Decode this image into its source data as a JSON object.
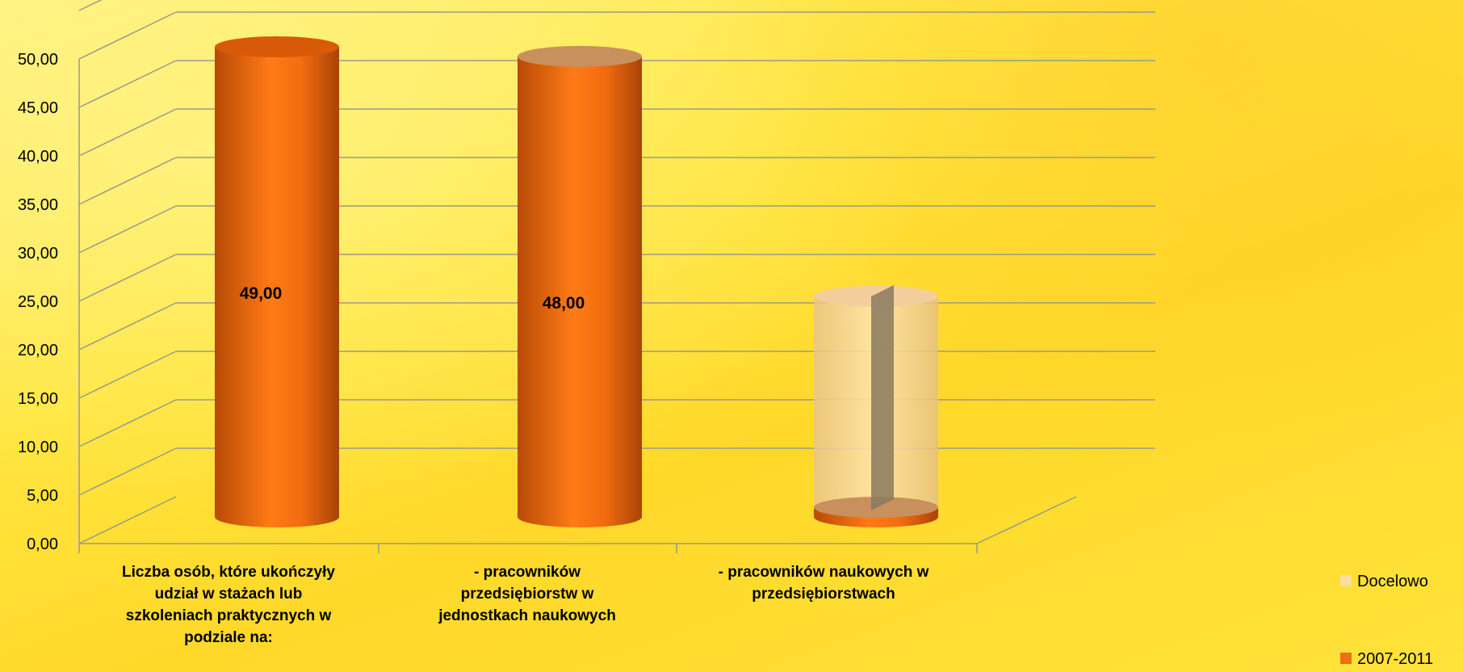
{
  "chart_data": {
    "type": "bar",
    "categories": [
      "Liczba osób, które ukończyły udział w stażach lub szkoleniach praktycznych w podziale na:",
      "- pracowników przedsiębiorstw w jednostkach naukowych",
      "- pracowników naukowych w przedsiębiorstwach"
    ],
    "series": [
      {
        "name": "2007-2011",
        "values": [
          49,
          48,
          1
        ],
        "data_labels": [
          "49,00",
          "48,00",
          ""
        ]
      },
      {
        "name": "Docelowo",
        "values": [
          null,
          null,
          23
        ],
        "data_labels": [
          "",
          "",
          ""
        ]
      }
    ],
    "ylim": [
      0,
      50
    ],
    "yticks": [
      "0,00",
      "5,00",
      "10,00",
      "15,00",
      "20,00",
      "25,00",
      "30,00",
      "35,00",
      "40,00",
      "45,00",
      "50,00"
    ],
    "grid": true,
    "legend_position": "right",
    "colors": {
      "2007-2011": "#ee6e10",
      "Docelowo": "#f9dca0"
    },
    "style": "3d-cylinder"
  }
}
